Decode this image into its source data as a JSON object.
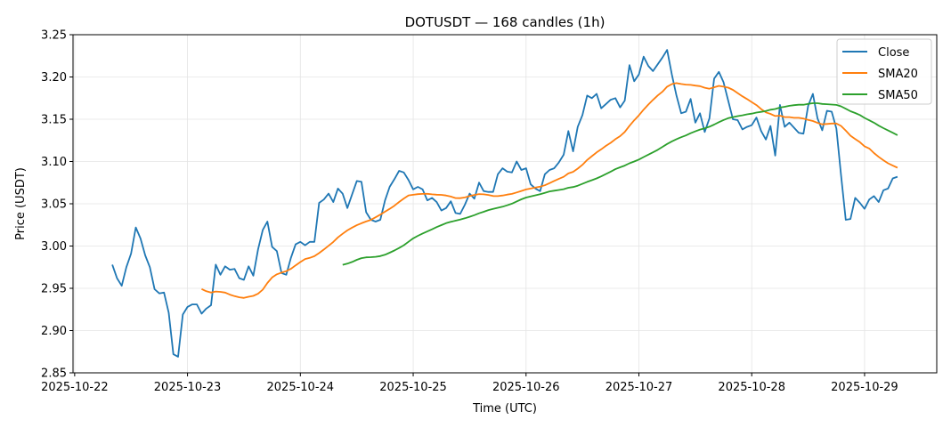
{
  "chart_data": {
    "type": "line",
    "title": "DOTUSDT — 168 candles (1h)",
    "xlabel": "Time (UTC)",
    "ylabel": "Price (USDT)",
    "x_start": "2025-10-22 08:00",
    "x_interval_hours": 1,
    "xlim_hours_from_2025-10-22": [
      -0.35,
      183.35
    ],
    "ylim": [
      2.85,
      3.25
    ],
    "yticks": [
      "2.85",
      "2.90",
      "2.95",
      "3.00",
      "3.05",
      "3.10",
      "3.15",
      "3.20",
      "3.25"
    ],
    "xticks": [
      "2025-10-22",
      "2025-10-23",
      "2025-10-24",
      "2025-10-25",
      "2025-10-26",
      "2025-10-27",
      "2025-10-28",
      "2025-10-29"
    ],
    "grid": true,
    "legend_position": "top-right",
    "series": [
      {
        "name": "Close",
        "color": "#1f77b4",
        "values": [
          2.978,
          2.962,
          2.953,
          2.975,
          2.991,
          3.022,
          3.009,
          2.989,
          2.975,
          2.949,
          2.944,
          2.945,
          2.921,
          2.872,
          2.869,
          2.919,
          2.928,
          2.931,
          2.931,
          2.92,
          2.926,
          2.93,
          2.978,
          2.966,
          2.976,
          2.972,
          2.973,
          2.962,
          2.96,
          2.976,
          2.965,
          2.996,
          3.019,
          3.029,
          2.999,
          2.994,
          2.968,
          2.966,
          2.986,
          3.002,
          3.005,
          3.001,
          3.005,
          3.005,
          3.051,
          3.055,
          3.062,
          3.052,
          3.068,
          3.062,
          3.045,
          3.061,
          3.077,
          3.076,
          3.04,
          3.031,
          3.029,
          3.031,
          3.054,
          3.07,
          3.079,
          3.089,
          3.087,
          3.078,
          3.067,
          3.07,
          3.067,
          3.054,
          3.057,
          3.052,
          3.042,
          3.045,
          3.053,
          3.039,
          3.038,
          3.049,
          3.062,
          3.056,
          3.075,
          3.065,
          3.064,
          3.064,
          3.085,
          3.092,
          3.088,
          3.087,
          3.1,
          3.09,
          3.092,
          3.073,
          3.068,
          3.065,
          3.085,
          3.09,
          3.092,
          3.099,
          3.108,
          3.136,
          3.112,
          3.141,
          3.155,
          3.178,
          3.175,
          3.18,
          3.163,
          3.168,
          3.173,
          3.175,
          3.164,
          3.172,
          3.214,
          3.195,
          3.203,
          3.224,
          3.213,
          3.207,
          3.215,
          3.223,
          3.232,
          3.203,
          3.178,
          3.157,
          3.159,
          3.174,
          3.146,
          3.157,
          3.135,
          3.151,
          3.198,
          3.206,
          3.194,
          3.172,
          3.15,
          3.149,
          3.138,
          3.141,
          3.143,
          3.152,
          3.136,
          3.126,
          3.142,
          3.107,
          3.167,
          3.141,
          3.146,
          3.14,
          3.134,
          3.133,
          3.166,
          3.18,
          3.151,
          3.137,
          3.16,
          3.159,
          3.139,
          3.084,
          3.031,
          3.032,
          3.057,
          3.051,
          3.044,
          3.055,
          3.059,
          3.052,
          3.066,
          3.068,
          3.08,
          3.082
        ]
      },
      {
        "name": "SMA20",
        "color": "#ff7f0e",
        "sma_window": 20,
        "of": "Close"
      },
      {
        "name": "SMA50",
        "color": "#2ca02c",
        "sma_window": 50,
        "of": "Close"
      }
    ]
  }
}
